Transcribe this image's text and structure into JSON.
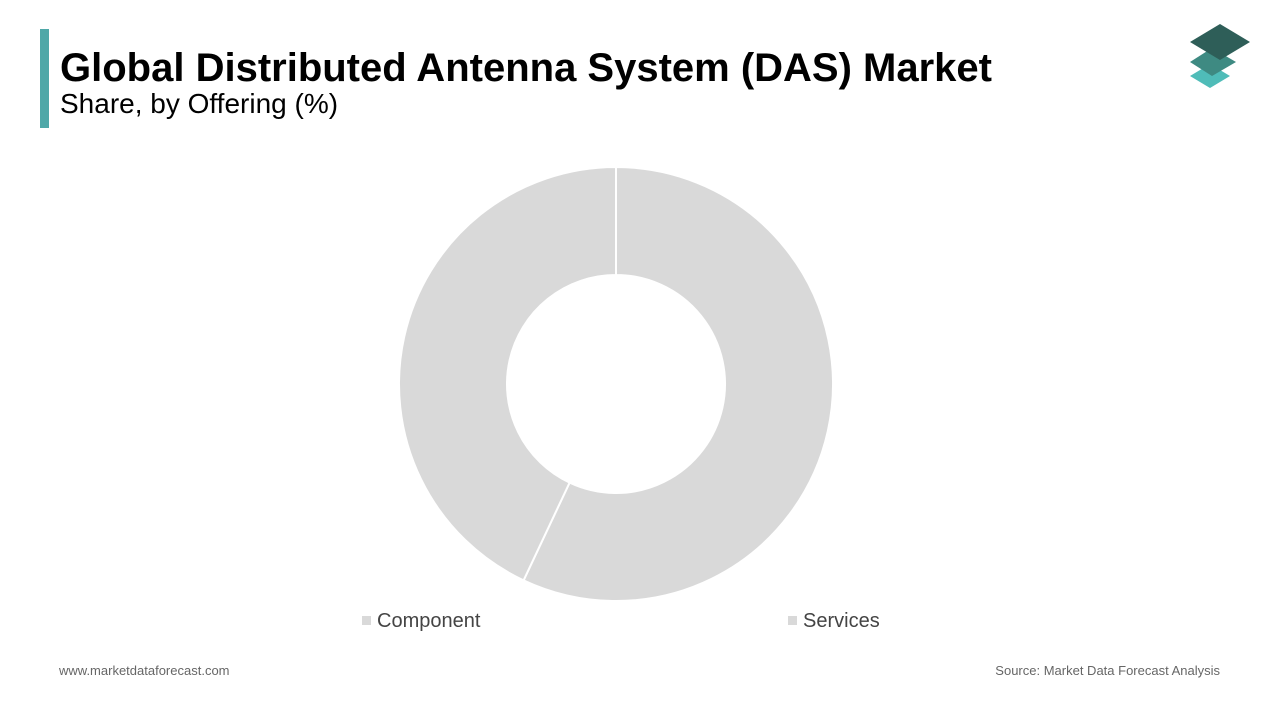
{
  "chart_data": {
    "type": "pie",
    "title": "Global Distributed Antenna System (DAS) Market",
    "subtitle": "Share, by Offering (%)",
    "categories": [
      "Component",
      "Services"
    ],
    "values": [
      57,
      43
    ],
    "colors": [
      "#d9d9d9",
      "#d9d9d9"
    ]
  },
  "footer": {
    "website": "www.marketdataforecast.com",
    "source": "Source: Market Data Forecast Analysis"
  }
}
